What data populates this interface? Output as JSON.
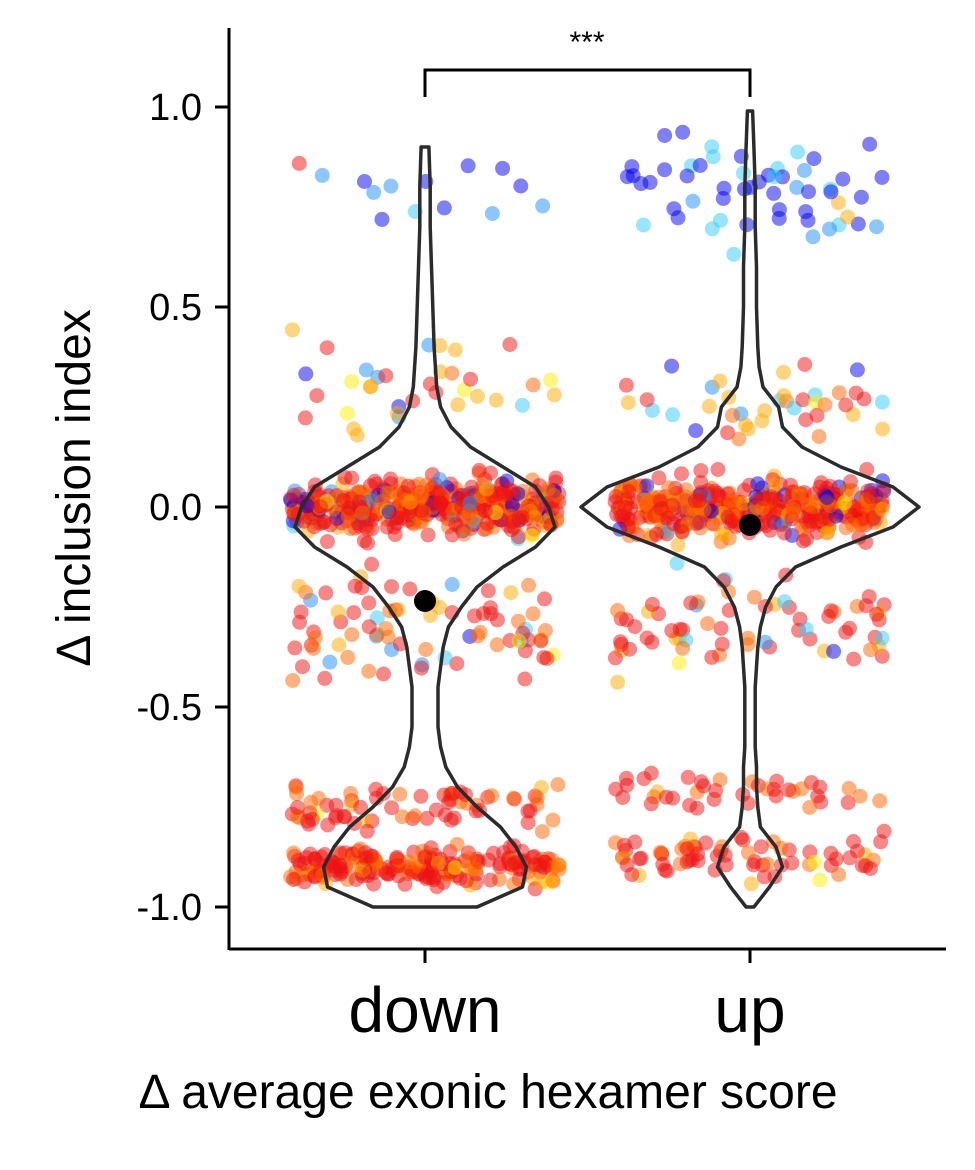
{
  "chart_data": {
    "type": "violin",
    "categories": [
      "down",
      "up"
    ],
    "xlabel": "Δ average exonic hexamer score",
    "ylabel": "Δ inclusion index",
    "ylim": [
      -1.1,
      1.2
    ],
    "yticks": [
      -1.0,
      -0.5,
      0.0,
      0.5,
      1.0
    ],
    "ytick_labels": [
      "-1.0",
      "-0.5",
      "0.0",
      "0.5",
      "1.0"
    ],
    "significance": {
      "between": [
        "down",
        "up"
      ],
      "label": "***"
    },
    "means": {
      "down": -0.235,
      "up": -0.045
    },
    "violins": {
      "down": {
        "y": [
          -1.0,
          -0.95,
          -0.9,
          -0.85,
          -0.8,
          -0.75,
          -0.7,
          -0.65,
          -0.6,
          -0.55,
          -0.5,
          -0.45,
          -0.4,
          -0.35,
          -0.3,
          -0.25,
          -0.2,
          -0.15,
          -0.1,
          -0.05,
          0.0,
          0.05,
          0.1,
          0.15,
          0.2,
          0.25,
          0.3,
          0.35,
          0.4,
          0.5,
          0.6,
          0.7,
          0.8,
          0.9
        ],
        "width": [
          0.04,
          0.075,
          0.078,
          0.07,
          0.058,
          0.04,
          0.025,
          0.016,
          0.012,
          0.01,
          0.01,
          0.01,
          0.012,
          0.014,
          0.018,
          0.028,
          0.04,
          0.06,
          0.085,
          0.1,
          0.095,
          0.085,
          0.06,
          0.035,
          0.02,
          0.012,
          0.009,
          0.008,
          0.007,
          0.006,
          0.005,
          0.004,
          0.004,
          0.003
        ]
      },
      "up": {
        "y": [
          -1.0,
          -0.95,
          -0.9,
          -0.85,
          -0.8,
          -0.75,
          -0.7,
          -0.65,
          -0.6,
          -0.55,
          -0.5,
          -0.45,
          -0.4,
          -0.35,
          -0.3,
          -0.25,
          -0.2,
          -0.15,
          -0.1,
          -0.05,
          0.0,
          0.05,
          0.1,
          0.15,
          0.2,
          0.25,
          0.3,
          0.35,
          0.4,
          0.5,
          0.6,
          0.7,
          0.8,
          0.9,
          0.99
        ],
        "width": [
          0.003,
          0.015,
          0.025,
          0.02,
          0.008,
          0.006,
          0.005,
          0.005,
          0.004,
          0.004,
          0.004,
          0.004,
          0.005,
          0.006,
          0.008,
          0.012,
          0.02,
          0.035,
          0.07,
          0.11,
          0.13,
          0.11,
          0.07,
          0.04,
          0.025,
          0.022,
          0.01,
          0.007,
          0.006,
          0.005,
          0.005,
          0.004,
          0.004,
          0.003,
          0.002
        ]
      }
    },
    "points_description": "jittered scatter points per category colored by hexamer score (blue = high, red = low)",
    "colors": {
      "violin_stroke": "#2b2b2b",
      "mean_point": "#000000",
      "palette": [
        "#0000ee",
        "#1e90ff",
        "#33ccff",
        "#ffee00",
        "#ffaa00",
        "#ff6600",
        "#ee1111"
      ]
    }
  }
}
